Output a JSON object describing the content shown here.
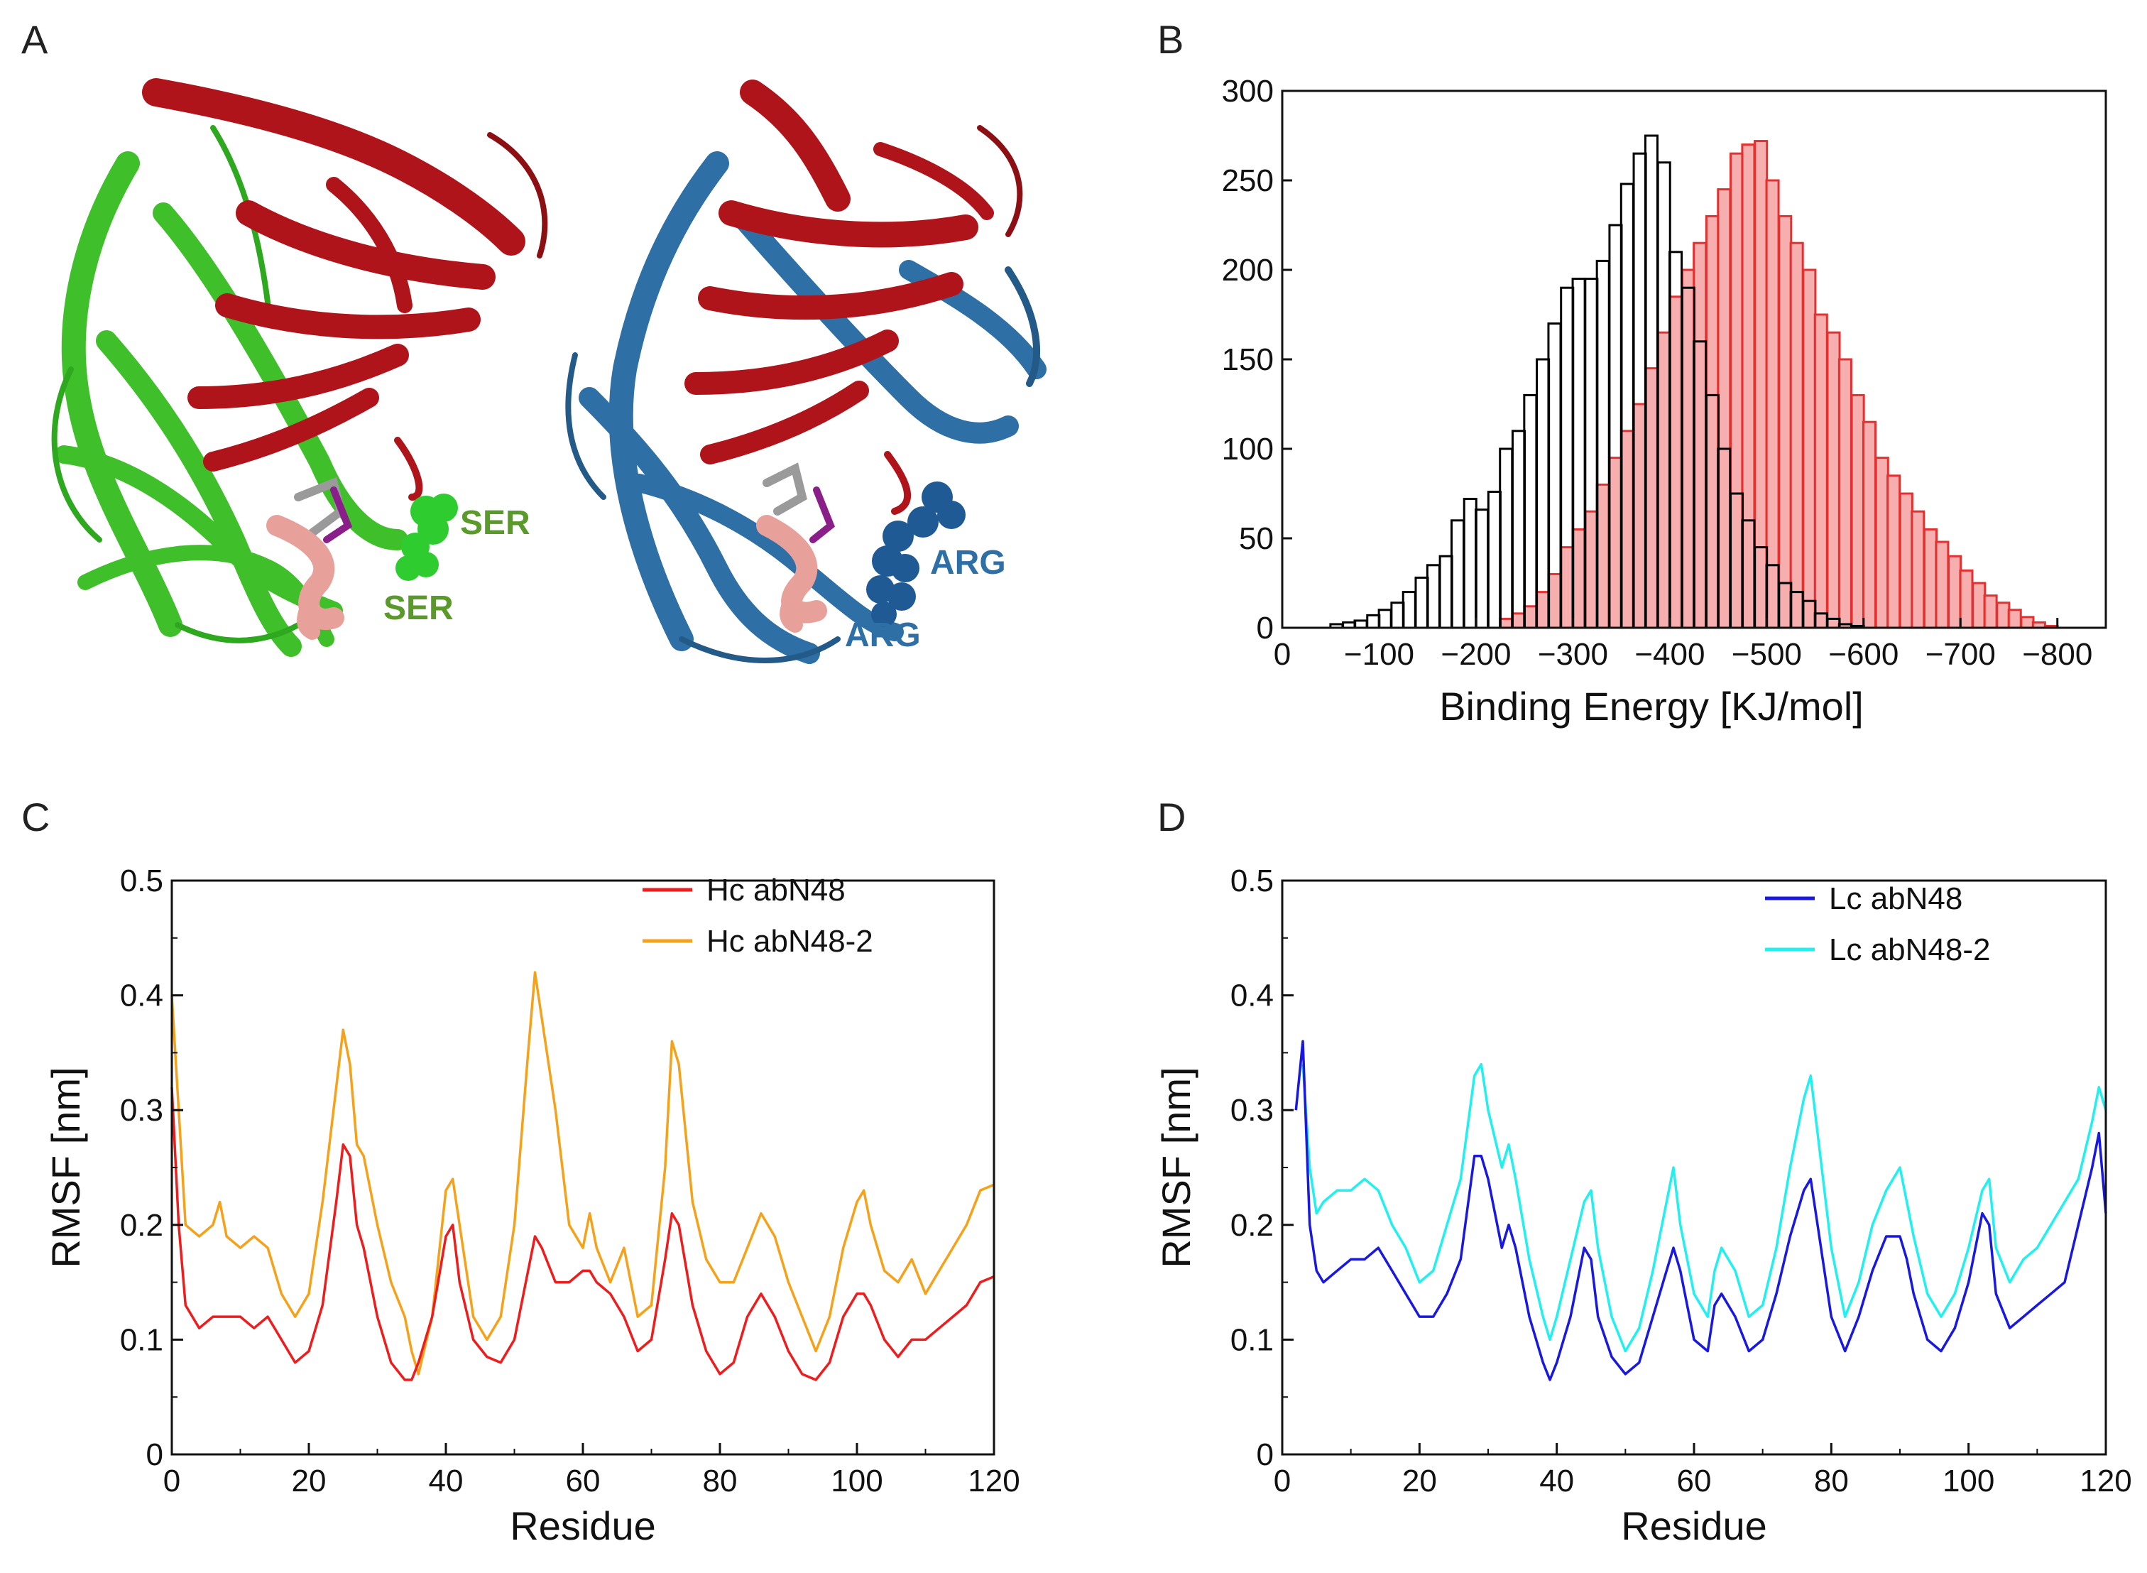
{
  "panels": {
    "a": "A",
    "b": "B",
    "c": "C",
    "d": "D"
  },
  "structure": {
    "left_labels": [
      "SER",
      "SER"
    ],
    "right_labels": [
      "ARG",
      "ARG"
    ],
    "colors": {
      "heavy_chain": "#b0141b",
      "left_light": "#3fbf2a",
      "right_light": "#2e6fa6",
      "peptide": "#e8a09a",
      "ligand": "#8a1f8a",
      "ser_label": "#5a9a2a",
      "arg_label": "#2e6fa6"
    }
  },
  "chart_data": [
    {
      "id": "B",
      "type": "bar",
      "xlabel": "Binding Energy [KJ/mol]",
      "ylabel": "",
      "xlim": [
        0,
        -850
      ],
      "ylim": [
        0,
        300
      ],
      "xticks": [
        0,
        -100,
        -200,
        -300,
        -400,
        -500,
        -600,
        -700,
        -800
      ],
      "xtick_labels": [
        "0",
        "−100",
        "−200",
        "−300",
        "−400",
        "−500",
        "−600",
        "−700",
        "−800"
      ],
      "yticks": [
        0,
        50,
        100,
        150,
        200,
        250,
        300
      ],
      "bin_width": 12.5,
      "series": [
        {
          "color": "#000000",
          "fill": "none",
          "bin_centers": [
            -56,
            -69,
            -81,
            -94,
            -106,
            -119,
            -131,
            -144,
            -156,
            -169,
            -181,
            -194,
            -206,
            -219,
            -231,
            -244,
            -256,
            -269,
            -281,
            -294,
            -306,
            -319,
            -331,
            -344,
            -356,
            -369,
            -381,
            -394,
            -406,
            -419,
            -431,
            -444,
            -456,
            -469,
            -481,
            -494,
            -506,
            -519,
            -531,
            -544,
            -556,
            -569,
            -581,
            -594
          ],
          "values": [
            2,
            3,
            4,
            7,
            10,
            14,
            20,
            28,
            35,
            40,
            60,
            72,
            66,
            76,
            100,
            110,
            130,
            150,
            170,
            190,
            195,
            195,
            205,
            225,
            248,
            265,
            275,
            260,
            210,
            190,
            160,
            130,
            100,
            75,
            60,
            45,
            35,
            25,
            20,
            15,
            8,
            5,
            2,
            1
          ]
        },
        {
          "color": "#e53030",
          "fill": "#f4a0a0",
          "bin_centers": [
            -231,
            -244,
            -256,
            -269,
            -281,
            -294,
            -306,
            -319,
            -331,
            -344,
            -356,
            -369,
            -381,
            -394,
            -406,
            -419,
            -431,
            -444,
            -456,
            -469,
            -481,
            -494,
            -506,
            -519,
            -531,
            -544,
            -556,
            -569,
            -581,
            -594,
            -606,
            -619,
            -631,
            -644,
            -656,
            -669,
            -681,
            -694,
            -706,
            -719,
            -731,
            -744,
            -756,
            -769,
            -781,
            -794
          ],
          "values": [
            5,
            8,
            12,
            20,
            30,
            45,
            55,
            65,
            80,
            95,
            110,
            125,
            145,
            165,
            185,
            200,
            215,
            230,
            245,
            265,
            270,
            272,
            250,
            230,
            215,
            200,
            175,
            165,
            150,
            130,
            115,
            95,
            85,
            75,
            65,
            55,
            48,
            40,
            32,
            25,
            18,
            14,
            10,
            6,
            3,
            1
          ]
        }
      ]
    },
    {
      "id": "C",
      "type": "line",
      "xlabel": "Residue",
      "ylabel": "RMSF [nm]",
      "xlim": [
        0,
        120
      ],
      "ylim": [
        0,
        0.5
      ],
      "xticks": [
        0,
        20,
        40,
        60,
        80,
        100,
        120
      ],
      "yticks": [
        0,
        0.1,
        0.2,
        0.3,
        0.4,
        0.5
      ],
      "ytick_labels": [
        "0",
        "0.1",
        "0.2",
        "0.3",
        "0.4",
        "0.5"
      ],
      "series": [
        {
          "name": "Hc abN48",
          "color": "#ee1c1c",
          "x": [
            0,
            1,
            2,
            4,
            6,
            8,
            10,
            12,
            14,
            16,
            18,
            20,
            22,
            24,
            25,
            26,
            27,
            28,
            30,
            32,
            34,
            35,
            36,
            38,
            40,
            41,
            42,
            44,
            46,
            48,
            50,
            52,
            53,
            54,
            56,
            58,
            60,
            61,
            62,
            64,
            66,
            68,
            70,
            72,
            73,
            74,
            76,
            78,
            80,
            82,
            84,
            86,
            88,
            90,
            92,
            94,
            96,
            98,
            100,
            101,
            102,
            104,
            106,
            108,
            110,
            112,
            114,
            116,
            118,
            120
          ],
          "y": [
            0.32,
            0.2,
            0.13,
            0.11,
            0.12,
            0.12,
            0.12,
            0.11,
            0.12,
            0.1,
            0.08,
            0.09,
            0.13,
            0.22,
            0.27,
            0.26,
            0.2,
            0.18,
            0.12,
            0.08,
            0.065,
            0.065,
            0.08,
            0.12,
            0.19,
            0.2,
            0.15,
            0.1,
            0.085,
            0.08,
            0.1,
            0.16,
            0.19,
            0.18,
            0.15,
            0.15,
            0.16,
            0.16,
            0.15,
            0.14,
            0.12,
            0.09,
            0.1,
            0.17,
            0.21,
            0.2,
            0.13,
            0.09,
            0.07,
            0.08,
            0.12,
            0.14,
            0.12,
            0.09,
            0.07,
            0.065,
            0.08,
            0.12,
            0.14,
            0.14,
            0.13,
            0.1,
            0.085,
            0.1,
            0.1,
            0.11,
            0.12,
            0.13,
            0.15,
            0.155
          ]
        },
        {
          "name": "Hc abN48-2",
          "color": "#f5a21a",
          "x": [
            0,
            1,
            2,
            4,
            6,
            7,
            8,
            10,
            12,
            14,
            16,
            18,
            20,
            22,
            24,
            25,
            26,
            27,
            28,
            30,
            32,
            34,
            35,
            36,
            38,
            40,
            41,
            42,
            44,
            46,
            48,
            50,
            52,
            53,
            54,
            56,
            58,
            60,
            61,
            62,
            64,
            66,
            68,
            70,
            72,
            73,
            74,
            76,
            78,
            80,
            82,
            84,
            86,
            88,
            90,
            92,
            94,
            96,
            98,
            100,
            101,
            102,
            104,
            106,
            108,
            110,
            112,
            114,
            116,
            118,
            120
          ],
          "y": [
            0.4,
            0.3,
            0.2,
            0.19,
            0.2,
            0.22,
            0.19,
            0.18,
            0.19,
            0.18,
            0.14,
            0.12,
            0.14,
            0.22,
            0.32,
            0.37,
            0.34,
            0.27,
            0.26,
            0.2,
            0.15,
            0.12,
            0.09,
            0.07,
            0.12,
            0.23,
            0.24,
            0.2,
            0.12,
            0.1,
            0.12,
            0.2,
            0.35,
            0.42,
            0.38,
            0.3,
            0.2,
            0.18,
            0.21,
            0.18,
            0.15,
            0.18,
            0.12,
            0.13,
            0.25,
            0.36,
            0.34,
            0.22,
            0.17,
            0.15,
            0.15,
            0.18,
            0.21,
            0.19,
            0.15,
            0.12,
            0.09,
            0.12,
            0.18,
            0.22,
            0.23,
            0.2,
            0.16,
            0.15,
            0.17,
            0.14,
            0.16,
            0.18,
            0.2,
            0.23,
            0.235
          ]
        }
      ]
    },
    {
      "id": "D",
      "type": "line",
      "xlabel": "Residue",
      "ylabel": "RMSF [nm]",
      "xlim": [
        0,
        120
      ],
      "ylim": [
        0,
        0.5
      ],
      "xticks": [
        0,
        20,
        40,
        60,
        80,
        100,
        120
      ],
      "yticks": [
        0,
        0.1,
        0.2,
        0.3,
        0.4,
        0.5
      ],
      "ytick_labels": [
        "0",
        "0.1",
        "0.2",
        "0.3",
        "0.4",
        "0.5"
      ],
      "series": [
        {
          "name": "Lc abN48",
          "color": "#1818e0",
          "x": [
            2,
            3,
            4,
            5,
            6,
            8,
            10,
            12,
            14,
            16,
            18,
            20,
            22,
            24,
            26,
            28,
            29,
            30,
            32,
            33,
            34,
            36,
            38,
            39,
            40,
            42,
            44,
            45,
            46,
            48,
            50,
            52,
            54,
            56,
            57,
            58,
            60,
            62,
            63,
            64,
            66,
            68,
            70,
            72,
            74,
            76,
            77,
            78,
            80,
            82,
            84,
            86,
            88,
            90,
            91,
            92,
            94,
            96,
            98,
            100,
            102,
            103,
            104,
            106,
            108,
            110,
            112,
            114,
            116,
            118,
            119,
            120
          ],
          "y": [
            0.3,
            0.36,
            0.2,
            0.16,
            0.15,
            0.16,
            0.17,
            0.17,
            0.18,
            0.16,
            0.14,
            0.12,
            0.12,
            0.14,
            0.17,
            0.26,
            0.26,
            0.24,
            0.18,
            0.2,
            0.18,
            0.12,
            0.08,
            0.065,
            0.08,
            0.12,
            0.18,
            0.17,
            0.12,
            0.085,
            0.07,
            0.08,
            0.12,
            0.16,
            0.18,
            0.16,
            0.1,
            0.09,
            0.13,
            0.14,
            0.12,
            0.09,
            0.1,
            0.14,
            0.19,
            0.23,
            0.24,
            0.2,
            0.12,
            0.09,
            0.12,
            0.16,
            0.19,
            0.19,
            0.17,
            0.14,
            0.1,
            0.09,
            0.11,
            0.15,
            0.21,
            0.2,
            0.14,
            0.11,
            0.12,
            0.13,
            0.14,
            0.15,
            0.2,
            0.25,
            0.28,
            0.21
          ]
        },
        {
          "name": "Lc abN48-2",
          "color": "#20f0f0",
          "x": [
            3,
            4,
            5,
            6,
            8,
            10,
            12,
            14,
            16,
            18,
            20,
            22,
            24,
            26,
            28,
            29,
            30,
            32,
            33,
            34,
            36,
            38,
            39,
            40,
            42,
            44,
            45,
            46,
            48,
            50,
            52,
            54,
            56,
            57,
            58,
            60,
            62,
            63,
            64,
            66,
            68,
            70,
            72,
            74,
            76,
            77,
            78,
            80,
            82,
            84,
            86,
            88,
            90,
            91,
            92,
            94,
            96,
            98,
            100,
            102,
            103,
            104,
            106,
            108,
            110,
            112,
            114,
            116,
            118,
            119,
            120
          ],
          "y": [
            0.34,
            0.25,
            0.21,
            0.22,
            0.23,
            0.23,
            0.24,
            0.23,
            0.2,
            0.18,
            0.15,
            0.16,
            0.2,
            0.24,
            0.33,
            0.34,
            0.3,
            0.25,
            0.27,
            0.24,
            0.17,
            0.12,
            0.1,
            0.12,
            0.17,
            0.22,
            0.23,
            0.18,
            0.12,
            0.09,
            0.11,
            0.16,
            0.22,
            0.25,
            0.2,
            0.14,
            0.12,
            0.16,
            0.18,
            0.16,
            0.12,
            0.13,
            0.18,
            0.25,
            0.31,
            0.33,
            0.28,
            0.18,
            0.12,
            0.15,
            0.2,
            0.23,
            0.25,
            0.22,
            0.19,
            0.14,
            0.12,
            0.14,
            0.18,
            0.23,
            0.24,
            0.18,
            0.15,
            0.17,
            0.18,
            0.2,
            0.22,
            0.24,
            0.29,
            0.32,
            0.3
          ]
        }
      ]
    }
  ]
}
